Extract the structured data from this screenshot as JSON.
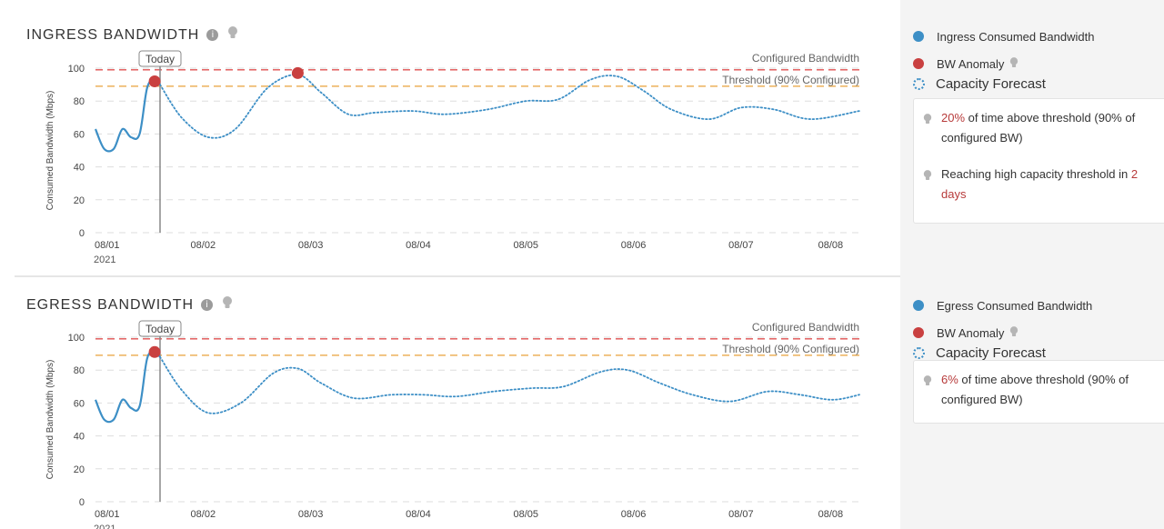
{
  "colors": {
    "consumed": "#3d8fc6",
    "anomaly": "#c94040",
    "configured_line": "#e05252",
    "threshold_line": "#e8a13a",
    "grid": "#dddddd",
    "highlight": "#b73a3a"
  },
  "icons": {
    "info": "info-icon",
    "hint": "lightbulb-icon"
  },
  "charts": {
    "ingress": {
      "title": "INGRESS BANDWIDTH",
      "today_label": "Today",
      "configured_label": "Configured Bandwidth",
      "threshold_label": "Threshold (90% Configured)",
      "ylabel": "Consumed Bandwidth (Mbps)",
      "year_label": "2021"
    },
    "egress": {
      "title": "EGRESS BANDWIDTH",
      "today_label": "Today",
      "configured_label": "Configured Bandwidth",
      "threshold_label": "Threshold (90% Configured)",
      "ylabel": "Consumed Bandwidth (Mbps)",
      "year_label": "2021"
    }
  },
  "chart_data": [
    {
      "type": "line",
      "title": "INGRESS BANDWIDTH",
      "ylabel": "Consumed Bandwidth (Mbps)",
      "ylim": [
        0,
        100
      ],
      "yticks": [
        0,
        20,
        40,
        60,
        80,
        100
      ],
      "xlim": [
        0.0,
        7.1
      ],
      "xticks": [
        {
          "x": 0,
          "label": "08/01"
        },
        {
          "x": 1,
          "label": "08/02"
        },
        {
          "x": 2,
          "label": "08/03"
        },
        {
          "x": 3,
          "label": "08/04"
        },
        {
          "x": 4,
          "label": "08/05"
        },
        {
          "x": 5,
          "label": "08/06"
        },
        {
          "x": 6,
          "label": "08/07"
        },
        {
          "x": 7,
          "label": "08/08"
        }
      ],
      "grid": true,
      "today_x": 0.6,
      "configured_bandwidth": 99,
      "threshold": 89,
      "series": [
        {
          "name": "Ingress Consumed Bandwidth",
          "style": "solid",
          "x": [
            0.0,
            0.08,
            0.17,
            0.25,
            0.33,
            0.41,
            0.48,
            0.55,
            0.6
          ],
          "y": [
            63,
            51,
            51,
            63,
            58,
            60,
            88,
            93,
            90
          ]
        },
        {
          "name": "Capacity Forecast",
          "style": "dotted",
          "x": [
            0.6,
            0.8,
            1.05,
            1.3,
            1.6,
            1.88,
            2.1,
            2.35,
            2.6,
            2.95,
            3.25,
            3.65,
            4.0,
            4.3,
            4.6,
            4.85,
            5.1,
            5.35,
            5.7,
            6.0,
            6.3,
            6.65,
            7.1
          ],
          "y": [
            90,
            70,
            58,
            63,
            88,
            96,
            85,
            72,
            73,
            74,
            72,
            75,
            80,
            81,
            93,
            95,
            86,
            75,
            69,
            76,
            75,
            69,
            74
          ]
        },
        {
          "name": "BW Anomaly",
          "style": "points",
          "x": [
            0.55,
            1.88
          ],
          "y": [
            92,
            97
          ]
        }
      ]
    },
    {
      "type": "line",
      "title": "EGRESS BANDWIDTH",
      "ylabel": "Consumed Bandwidth (Mbps)",
      "ylim": [
        0,
        100
      ],
      "yticks": [
        0,
        20,
        40,
        60,
        80,
        100
      ],
      "xlim": [
        0.0,
        7.1
      ],
      "xticks": [
        {
          "x": 0,
          "label": "08/01"
        },
        {
          "x": 1,
          "label": "08/02"
        },
        {
          "x": 2,
          "label": "08/03"
        },
        {
          "x": 3,
          "label": "08/04"
        },
        {
          "x": 4,
          "label": "08/05"
        },
        {
          "x": 5,
          "label": "08/06"
        },
        {
          "x": 6,
          "label": "08/07"
        },
        {
          "x": 7,
          "label": "08/08"
        }
      ],
      "grid": true,
      "today_x": 0.6,
      "configured_bandwidth": 99,
      "threshold": 89,
      "series": [
        {
          "name": "Egress Consumed Bandwidth",
          "style": "solid",
          "x": [
            0.0,
            0.08,
            0.17,
            0.25,
            0.33,
            0.41,
            0.48,
            0.55,
            0.6
          ],
          "y": [
            62,
            50,
            50,
            62,
            57,
            58,
            87,
            91,
            88
          ]
        },
        {
          "name": "Capacity Forecast",
          "style": "dotted",
          "x": [
            0.6,
            0.8,
            1.05,
            1.35,
            1.65,
            1.88,
            2.1,
            2.4,
            2.75,
            3.05,
            3.35,
            3.7,
            4.05,
            4.35,
            4.7,
            4.95,
            5.25,
            5.55,
            5.9,
            6.25,
            6.55,
            6.85,
            7.1
          ],
          "y": [
            88,
            68,
            54,
            60,
            78,
            81,
            72,
            63,
            65,
            65,
            64,
            67,
            69,
            70,
            79,
            80,
            72,
            65,
            61,
            67,
            65,
            62,
            65
          ]
        },
        {
          "name": "BW Anomaly",
          "style": "points",
          "x": [
            0.55
          ],
          "y": [
            91
          ]
        }
      ]
    }
  ],
  "legends": {
    "ingress": {
      "consumed_label": "Ingress Consumed Bandwidth",
      "anomaly_label": "BW Anomaly",
      "forecast_label": "Capacity Forecast"
    },
    "egress": {
      "consumed_label": "Egress Consumed Bandwidth",
      "anomaly_label": "BW Anomaly",
      "forecast_label": "Capacity Forecast"
    }
  },
  "insights": {
    "ingress": [
      {
        "highlight": "20%",
        "text": " of time above threshold (90% of configured BW)"
      },
      {
        "prefix": "Reaching high capacity threshold in ",
        "highlight": "2 days"
      }
    ],
    "egress": [
      {
        "highlight": "6%",
        "text": " of time above threshold (90% of configured BW)"
      }
    ]
  }
}
